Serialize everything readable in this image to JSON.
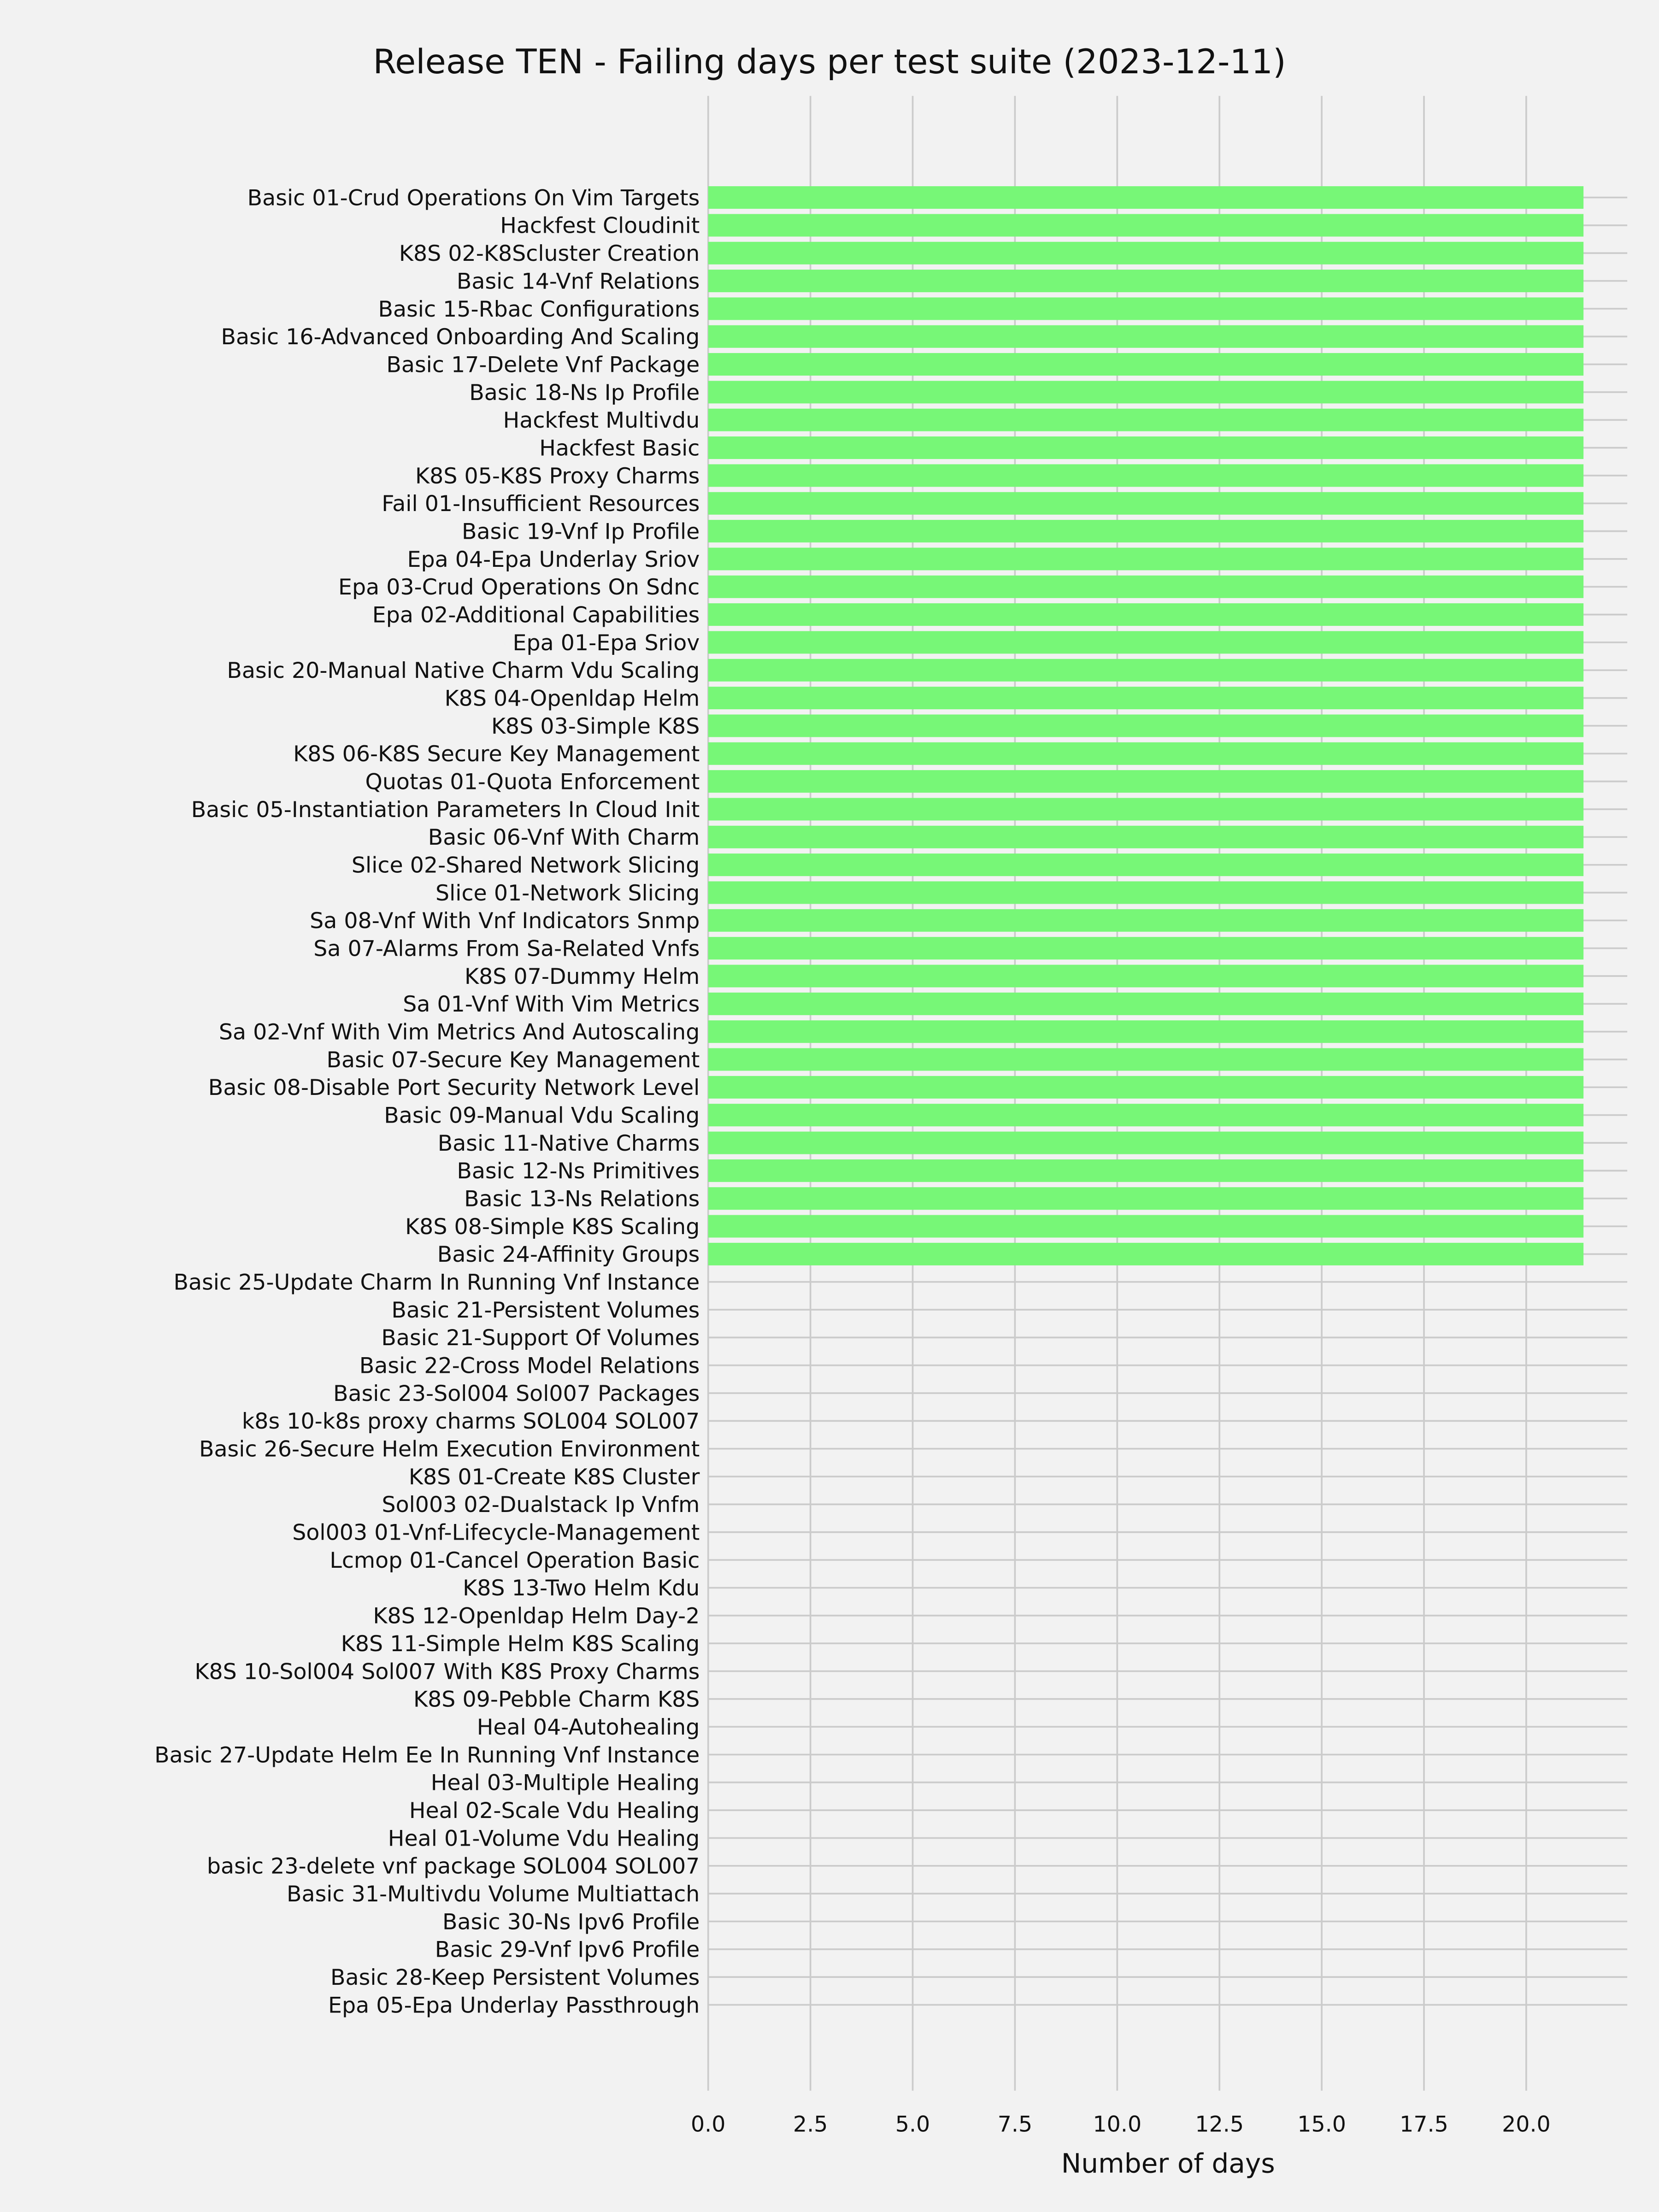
{
  "chart_data": {
    "type": "bar",
    "orientation": "horizontal",
    "title": "Release TEN - Failing days per test suite (2023-12-11)",
    "xlabel": "Number of days",
    "ylabel": "",
    "xlim": [
      0,
      22.47
    ],
    "xticks": [
      "0.0",
      "2.5",
      "5.0",
      "7.5",
      "10.0",
      "12.5",
      "15.0",
      "17.5",
      "20.0"
    ],
    "grid": true,
    "colors": {
      "bar": "#77f777",
      "background": "#f2f2f2",
      "grid": "#cbcbcb"
    },
    "categories": [
      "Basic 01-Crud Operations On Vim Targets",
      "Hackfest Cloudinit",
      "K8S 02-K8Scluster Creation",
      "Basic 14-Vnf Relations",
      "Basic 15-Rbac Configurations",
      "Basic 16-Advanced Onboarding And Scaling",
      "Basic 17-Delete Vnf Package",
      "Basic 18-Ns Ip Profile",
      "Hackfest Multivdu",
      "Hackfest Basic",
      "K8S 05-K8S Proxy Charms",
      "Fail 01-Insufficient Resources",
      "Basic 19-Vnf Ip Profile",
      "Epa 04-Epa Underlay Sriov",
      "Epa 03-Crud Operations On Sdnc",
      "Epa 02-Additional Capabilities",
      "Epa 01-Epa Sriov",
      "Basic 20-Manual Native Charm Vdu Scaling",
      "K8S 04-Openldap Helm",
      "K8S 03-Simple K8S",
      "K8S 06-K8S Secure Key Management",
      "Quotas 01-Quota Enforcement",
      "Basic 05-Instantiation Parameters In Cloud Init",
      "Basic 06-Vnf With Charm",
      "Slice 02-Shared Network Slicing",
      "Slice 01-Network Slicing",
      "Sa 08-Vnf With Vnf Indicators Snmp",
      "Sa 07-Alarms From Sa-Related Vnfs",
      "K8S 07-Dummy Helm",
      "Sa 01-Vnf With Vim Metrics",
      "Sa 02-Vnf With Vim Metrics And Autoscaling",
      "Basic 07-Secure Key Management",
      "Basic 08-Disable Port Security Network Level",
      "Basic 09-Manual Vdu Scaling",
      "Basic 11-Native Charms",
      "Basic 12-Ns Primitives",
      "Basic 13-Ns Relations",
      "K8S 08-Simple K8S Scaling",
      "Basic 24-Affinity Groups",
      "Basic 25-Update Charm In Running Vnf Instance",
      "Basic 21-Persistent Volumes",
      "Basic 21-Support Of Volumes",
      "Basic 22-Cross Model Relations",
      "Basic 23-Sol004 Sol007 Packages",
      "k8s 10-k8s proxy charms SOL004 SOL007",
      "Basic 26-Secure Helm Execution Environment",
      "K8S 01-Create K8S Cluster",
      "Sol003 02-Dualstack Ip Vnfm",
      "Sol003 01-Vnf-Lifecycle-Management",
      "Lcmop 01-Cancel Operation Basic",
      "K8S 13-Two Helm Kdu",
      "K8S 12-Openldap Helm Day-2",
      "K8S 11-Simple Helm K8S Scaling",
      "K8S 10-Sol004 Sol007 With K8S Proxy Charms",
      "K8S 09-Pebble Charm K8S",
      "Heal 04-Autohealing",
      "Basic 27-Update Helm Ee In Running Vnf Instance",
      "Heal 03-Multiple Healing",
      "Heal 02-Scale Vdu Healing",
      "Heal 01-Volume Vdu Healing",
      "basic 23-delete vnf package SOL004 SOL007",
      "Basic 31-Multivdu Volume Multiattach",
      "Basic 30-Ns Ipv6 Profile",
      "Basic 29-Vnf Ipv6 Profile",
      "Basic 28-Keep Persistent Volumes",
      "Epa 05-Epa Underlay Passthrough"
    ],
    "values": [
      21.4,
      21.4,
      21.4,
      21.4,
      21.4,
      21.4,
      21.4,
      21.4,
      21.4,
      21.4,
      21.4,
      21.4,
      21.4,
      21.4,
      21.4,
      21.4,
      21.4,
      21.4,
      21.4,
      21.4,
      21.4,
      21.4,
      21.4,
      21.4,
      21.4,
      21.4,
      21.4,
      21.4,
      21.4,
      21.4,
      21.4,
      21.4,
      21.4,
      21.4,
      21.4,
      21.4,
      21.4,
      21.4,
      21.4,
      0,
      0,
      0,
      0,
      0,
      0,
      0,
      0,
      0,
      0,
      0,
      0,
      0,
      0,
      0,
      0,
      0,
      0,
      0,
      0,
      0,
      0,
      0,
      0,
      0,
      0,
      0
    ]
  }
}
